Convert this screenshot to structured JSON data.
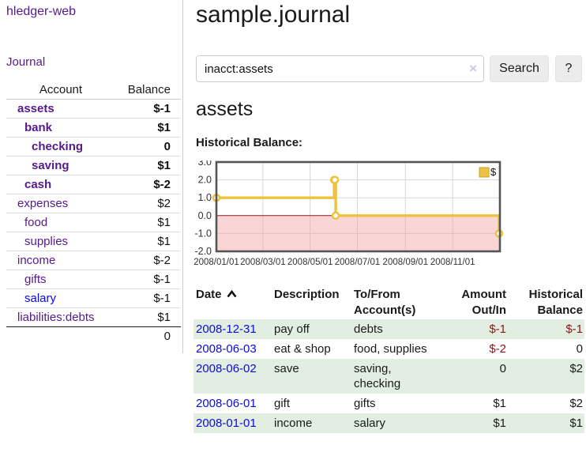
{
  "colors": {
    "accent_purple": "#551a8b",
    "link_blue": "#0b0bdd",
    "negative_red": "#8f1616",
    "negative_dim": "#b26a66",
    "row_green": "#e2eee2",
    "series_gold": "#edc240"
  },
  "sidebar": {
    "brand": "hledger-web",
    "journal_link": "Journal",
    "accounts_table": {
      "col_account": "Account",
      "col_balance": "Balance",
      "rows": [
        {
          "label": "assets",
          "indent": 1,
          "bold": true,
          "balance": "$-1",
          "neg": true,
          "dim": false,
          "blue": false
        },
        {
          "label": "bank",
          "indent": 2,
          "bold": true,
          "balance": "$1",
          "neg": false,
          "dim": false,
          "blue": false
        },
        {
          "label": "checking",
          "indent": 3,
          "bold": true,
          "balance": "0",
          "neg": false,
          "dim": false,
          "blue": false
        },
        {
          "label": "saving",
          "indent": 3,
          "bold": true,
          "balance": "$1",
          "neg": false,
          "dim": false,
          "blue": false
        },
        {
          "label": "cash",
          "indent": 2,
          "bold": true,
          "balance": "$-2",
          "neg": true,
          "dim": false,
          "blue": false
        },
        {
          "label": "expenses",
          "indent": 1,
          "bold": false,
          "balance": "$2",
          "neg": false,
          "dim": false,
          "blue": false
        },
        {
          "label": "food",
          "indent": 2,
          "bold": false,
          "balance": "$1",
          "neg": false,
          "dim": false,
          "blue": false
        },
        {
          "label": "supplies",
          "indent": 2,
          "bold": false,
          "balance": "$1",
          "neg": false,
          "dim": false,
          "blue": false
        },
        {
          "label": "income",
          "indent": 1,
          "bold": false,
          "balance": "$-2",
          "neg": true,
          "dim": true,
          "blue": false
        },
        {
          "label": "gifts",
          "indent": 2,
          "bold": false,
          "balance": "$-1",
          "neg": true,
          "dim": true,
          "blue": false
        },
        {
          "label": "salary",
          "indent": 2,
          "bold": false,
          "balance": "$-1",
          "neg": true,
          "dim": true,
          "blue": true
        },
        {
          "label": "liabilities:debts",
          "indent": 1,
          "bold": false,
          "balance": "$1",
          "neg": false,
          "dim": false,
          "blue": false,
          "last": true
        }
      ],
      "total": "0"
    }
  },
  "main": {
    "title": "sample.journal",
    "search": {
      "value": "inacct:assets",
      "clear_icon": "×",
      "button_label": "Search",
      "help_label": "?"
    },
    "account_heading": "assets",
    "chart_label": "Historical Balance:"
  },
  "chart_data": {
    "type": "line",
    "step": true,
    "title": "Historical Balance:",
    "series": [
      {
        "name": "$",
        "color": "#edc240",
        "points": [
          [
            "2008-01-01",
            1
          ],
          [
            "2008-06-01",
            2
          ],
          [
            "2008-06-02",
            2
          ],
          [
            "2008-06-03",
            0
          ],
          [
            "2008-12-31",
            -1
          ]
        ]
      }
    ],
    "x_range": [
      "2008-01-01",
      "2009-01-01"
    ],
    "x_ticks": [
      {
        "date": "2008-01-01",
        "label": "2008/01/01"
      },
      {
        "date": "2008-03-01",
        "label": "2008/03/01"
      },
      {
        "date": "2008-05-01",
        "label": "2008/05/01"
      },
      {
        "date": "2008-07-01",
        "label": "2008/07/01"
      },
      {
        "date": "2008-09-01",
        "label": "2008/09/01"
      },
      {
        "date": "2008-11-01",
        "label": "2008/11/01"
      }
    ],
    "y_ticks": [
      "3.0",
      "2.0",
      "1.0",
      "0.0",
      "-1.0",
      "-2.0"
    ],
    "ylim": [
      -2,
      3
    ],
    "grid": true,
    "negative_region_color": "#f09c9c",
    "zero_line_color": "#8b1a1a",
    "legend": {
      "label": "$",
      "position": "top-right"
    }
  },
  "register_table": {
    "headers": [
      {
        "line1": "Date",
        "line2": "",
        "sorted": true,
        "align": "l"
      },
      {
        "line1": "Description",
        "line2": "",
        "align": "l"
      },
      {
        "line1": "To/From",
        "line2": "Account(s)",
        "align": "l"
      },
      {
        "line1": "Amount",
        "line2": "Out/In",
        "align": "r"
      },
      {
        "line1": "Historical",
        "line2": "Balance",
        "align": "r"
      }
    ],
    "rows": [
      {
        "date": "2008-12-31",
        "description": "pay off",
        "accounts": "debts",
        "amount": "$-1",
        "amount_neg": true,
        "balance": "$-1",
        "balance_neg": true
      },
      {
        "date": "2008-06-03",
        "description": "eat & shop",
        "accounts": "food, supplies",
        "amount": "$-2",
        "amount_neg": true,
        "balance": "0",
        "balance_neg": false
      },
      {
        "date": "2008-06-02",
        "description": "save",
        "accounts": "saving, checking",
        "amount": "0",
        "amount_neg": false,
        "balance": "$2",
        "balance_neg": false
      },
      {
        "date": "2008-06-01",
        "description": "gift",
        "accounts": "gifts",
        "amount": "$1",
        "amount_neg": false,
        "balance": "$2",
        "balance_neg": false
      },
      {
        "date": "2008-01-01",
        "description": "income",
        "accounts": "salary",
        "amount": "$1",
        "amount_neg": false,
        "balance": "$1",
        "balance_neg": false
      }
    ]
  }
}
